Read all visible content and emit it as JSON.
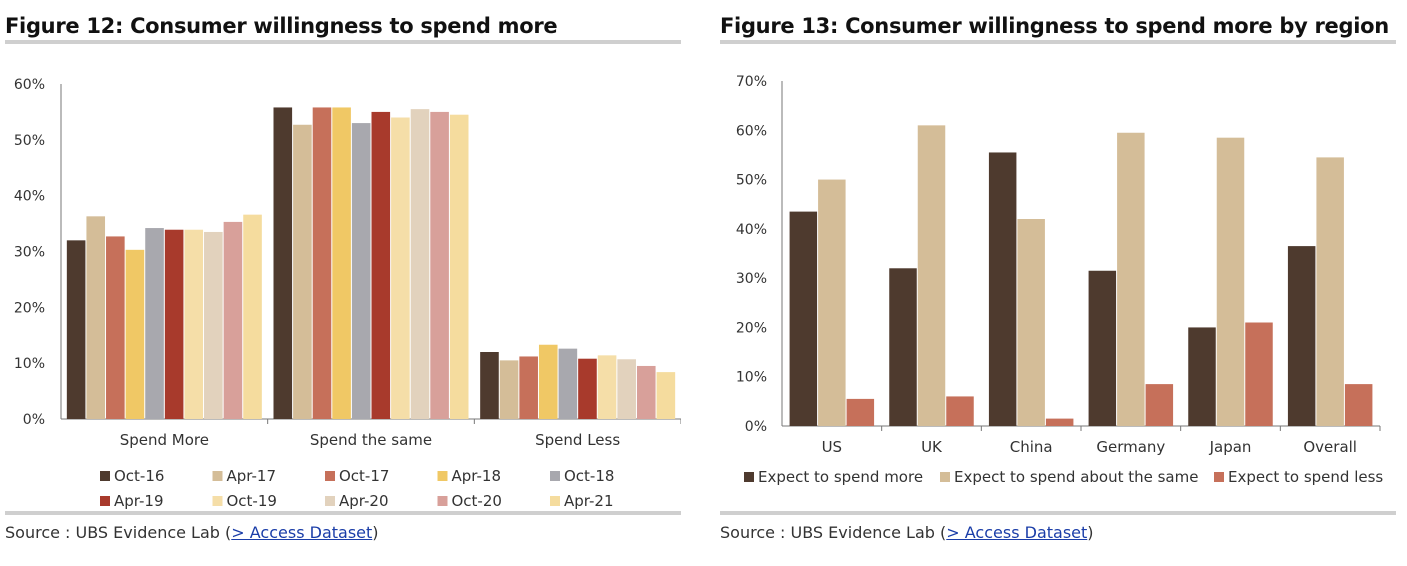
{
  "figure12": {
    "title": "Figure 12: Consumer willingness to spend more",
    "source_prefix": "Source : UBS Evidence Lab (",
    "source_link": "> Access Dataset",
    "source_suffix": ")",
    "colors": [
      "#4e3a2e",
      "#d4bd98",
      "#c6705a",
      "#f0c865",
      "#a8a8ae",
      "#a83a2c",
      "#f5dea8",
      "#e2d2bd",
      "#d8a09a",
      "#f5dc9e"
    ],
    "chart_data": {
      "type": "bar",
      "categories": [
        "Spend More",
        "Spend the same",
        "Spend Less"
      ],
      "series": [
        {
          "name": "Oct-16",
          "values": [
            32,
            55.8,
            12
          ]
        },
        {
          "name": "Apr-17",
          "values": [
            36.3,
            52.7,
            10.5
          ]
        },
        {
          "name": "Oct-17",
          "values": [
            32.7,
            55.8,
            11.2
          ]
        },
        {
          "name": "Apr-18",
          "values": [
            30.3,
            55.8,
            13.3
          ]
        },
        {
          "name": "Oct-18",
          "values": [
            34.2,
            53,
            12.6
          ]
        },
        {
          "name": "Apr-19",
          "values": [
            33.9,
            55,
            10.8
          ]
        },
        {
          "name": "Oct-19",
          "values": [
            33.9,
            54,
            11.4
          ]
        },
        {
          "name": "Apr-20",
          "values": [
            33.5,
            55.5,
            10.7
          ]
        },
        {
          "name": "Oct-20",
          "values": [
            35.3,
            55,
            9.5
          ]
        },
        {
          "name": "Apr-21",
          "values": [
            36.6,
            54.5,
            8.4
          ]
        }
      ],
      "yticks": [
        "0%",
        "10%",
        "20%",
        "30%",
        "40%",
        "50%",
        "60%"
      ],
      "ylim": [
        0,
        60
      ],
      "legend_position": "bottom"
    }
  },
  "figure13": {
    "title": "Figure 13: Consumer willingness to spend more by region",
    "source_prefix": "Source : UBS Evidence Lab (",
    "source_link": "> Access Dataset",
    "source_suffix": ")",
    "colors": [
      "#4e3a2e",
      "#d4bd98",
      "#c6705a"
    ],
    "chart_data": {
      "type": "bar",
      "categories": [
        "US",
        "UK",
        "China",
        "Germany",
        "Japan",
        "Overall"
      ],
      "series": [
        {
          "name": "Expect to spend more",
          "values": [
            43.5,
            32,
            55.5,
            31.5,
            20,
            36.5
          ]
        },
        {
          "name": "Expect to spend about the same",
          "values": [
            50,
            61,
            42,
            59.5,
            58.5,
            54.5
          ]
        },
        {
          "name": "Expect to spend less",
          "values": [
            5.5,
            6,
            1.5,
            8.5,
            21,
            8.5
          ]
        }
      ],
      "yticks": [
        "0%",
        "10%",
        "20%",
        "30%",
        "40%",
        "50%",
        "60%",
        "70%"
      ],
      "ylim": [
        0,
        70
      ],
      "legend_position": "bottom"
    }
  }
}
